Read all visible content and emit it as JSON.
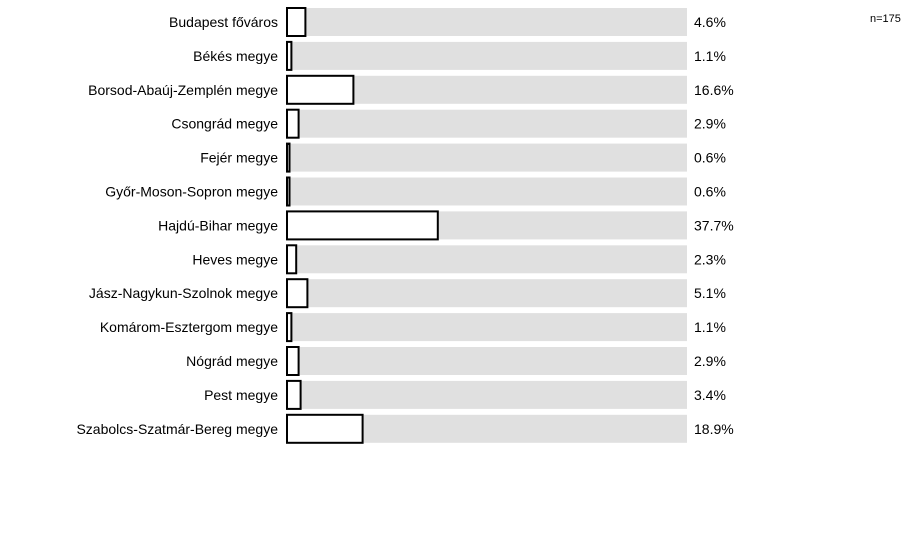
{
  "chart_data": {
    "type": "bar",
    "orientation": "horizontal",
    "categories": [
      "Budapest főváros",
      "Békés megye",
      "Borsod-Abaúj-Zemplén megye",
      "Csongrád megye",
      "Fejér megye",
      "Győr-Moson-Sopron megye",
      "Hajdú-Bihar megye",
      "Heves megye",
      "Jász-Nagykun-Szolnok megye",
      "Komárom-Esztergom megye",
      "Nógrád megye",
      "Pest megye",
      "Szabolcs-Szatmár-Bereg megye"
    ],
    "values": [
      4.6,
      1.1,
      16.6,
      2.9,
      0.6,
      0.6,
      37.7,
      2.3,
      5.1,
      1.1,
      2.9,
      3.4,
      18.9
    ],
    "value_labels": [
      "4.6%",
      "1.1%",
      "16.6%",
      "2.9%",
      "0.6%",
      "0.6%",
      "37.7%",
      "2.3%",
      "5.1%",
      "1.1%",
      "2.9%",
      "3.4%",
      "18.9%"
    ],
    "xlim": [
      0,
      100
    ],
    "n_label": "n=175",
    "colors": {
      "track": "#e0e0e0",
      "bar_fill": "#ffffff",
      "bar_stroke": "#000000"
    }
  }
}
